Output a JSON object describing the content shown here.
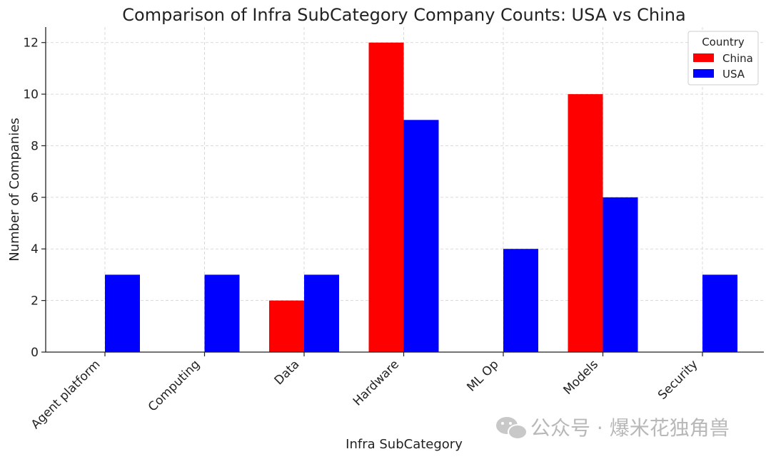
{
  "chart_data": {
    "type": "bar",
    "title": "Comparison of Infra SubCategory Company Counts: USA vs China",
    "xlabel": "Infra SubCategory",
    "ylabel": "Number of Companies",
    "categories": [
      "Agent platform",
      "Computing",
      "Data",
      "Hardware",
      "ML Op",
      "Models",
      "Security"
    ],
    "series": [
      {
        "name": "China",
        "color": "#ff0000",
        "values": [
          0,
          0,
          2,
          12,
          0,
          10,
          0
        ]
      },
      {
        "name": "USA",
        "color": "#0000ff",
        "values": [
          3,
          3,
          3,
          9,
          4,
          6,
          3
        ]
      }
    ],
    "ylim": [
      0,
      12.6
    ],
    "yticks": [
      0,
      2,
      4,
      6,
      8,
      10,
      12
    ],
    "grid": true,
    "legend": {
      "title": "Country",
      "placement": "top-right"
    }
  },
  "watermark": {
    "text": "公众号 · 爆米花独角兽",
    "icon": "wechat-icon"
  }
}
